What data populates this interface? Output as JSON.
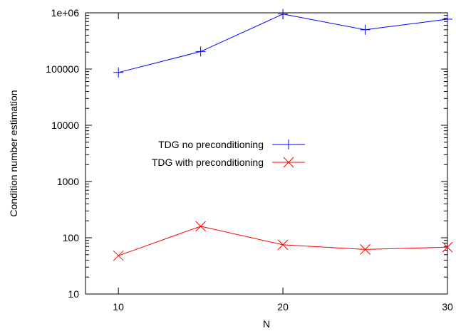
{
  "chart_data": {
    "type": "line",
    "title": "",
    "xlabel": "N",
    "ylabel": "Condition number estimation",
    "xscale": "linear",
    "yscale": "log",
    "xlim": [
      8,
      30
    ],
    "ylim": [
      10,
      1000000
    ],
    "xticks": [
      {
        "value": 10,
        "label": "10"
      },
      {
        "value": 20,
        "label": "20"
      },
      {
        "value": 30,
        "label": "30"
      }
    ],
    "yticks": [
      {
        "value": 10,
        "label": "10"
      },
      {
        "value": 100,
        "label": "100"
      },
      {
        "value": 1000,
        "label": "1000"
      },
      {
        "value": 10000,
        "label": "10000"
      },
      {
        "value": 100000,
        "label": "100000"
      },
      {
        "value": 1000000,
        "label": "1e+06"
      }
    ],
    "grid": false,
    "legend_position": "center-left",
    "series": [
      {
        "name": "TDG no preconditioning",
        "color": "#0000ff",
        "marker": "plus",
        "x": [
          10,
          15,
          20,
          25,
          30
        ],
        "y": [
          87000,
          205000,
          950000,
          500000,
          770000
        ]
      },
      {
        "name": "TDG with preconditioning",
        "color": "#ff0000",
        "marker": "cross",
        "x": [
          10,
          15,
          20,
          25,
          30
        ],
        "y": [
          48,
          160,
          75,
          62,
          68
        ]
      }
    ]
  }
}
